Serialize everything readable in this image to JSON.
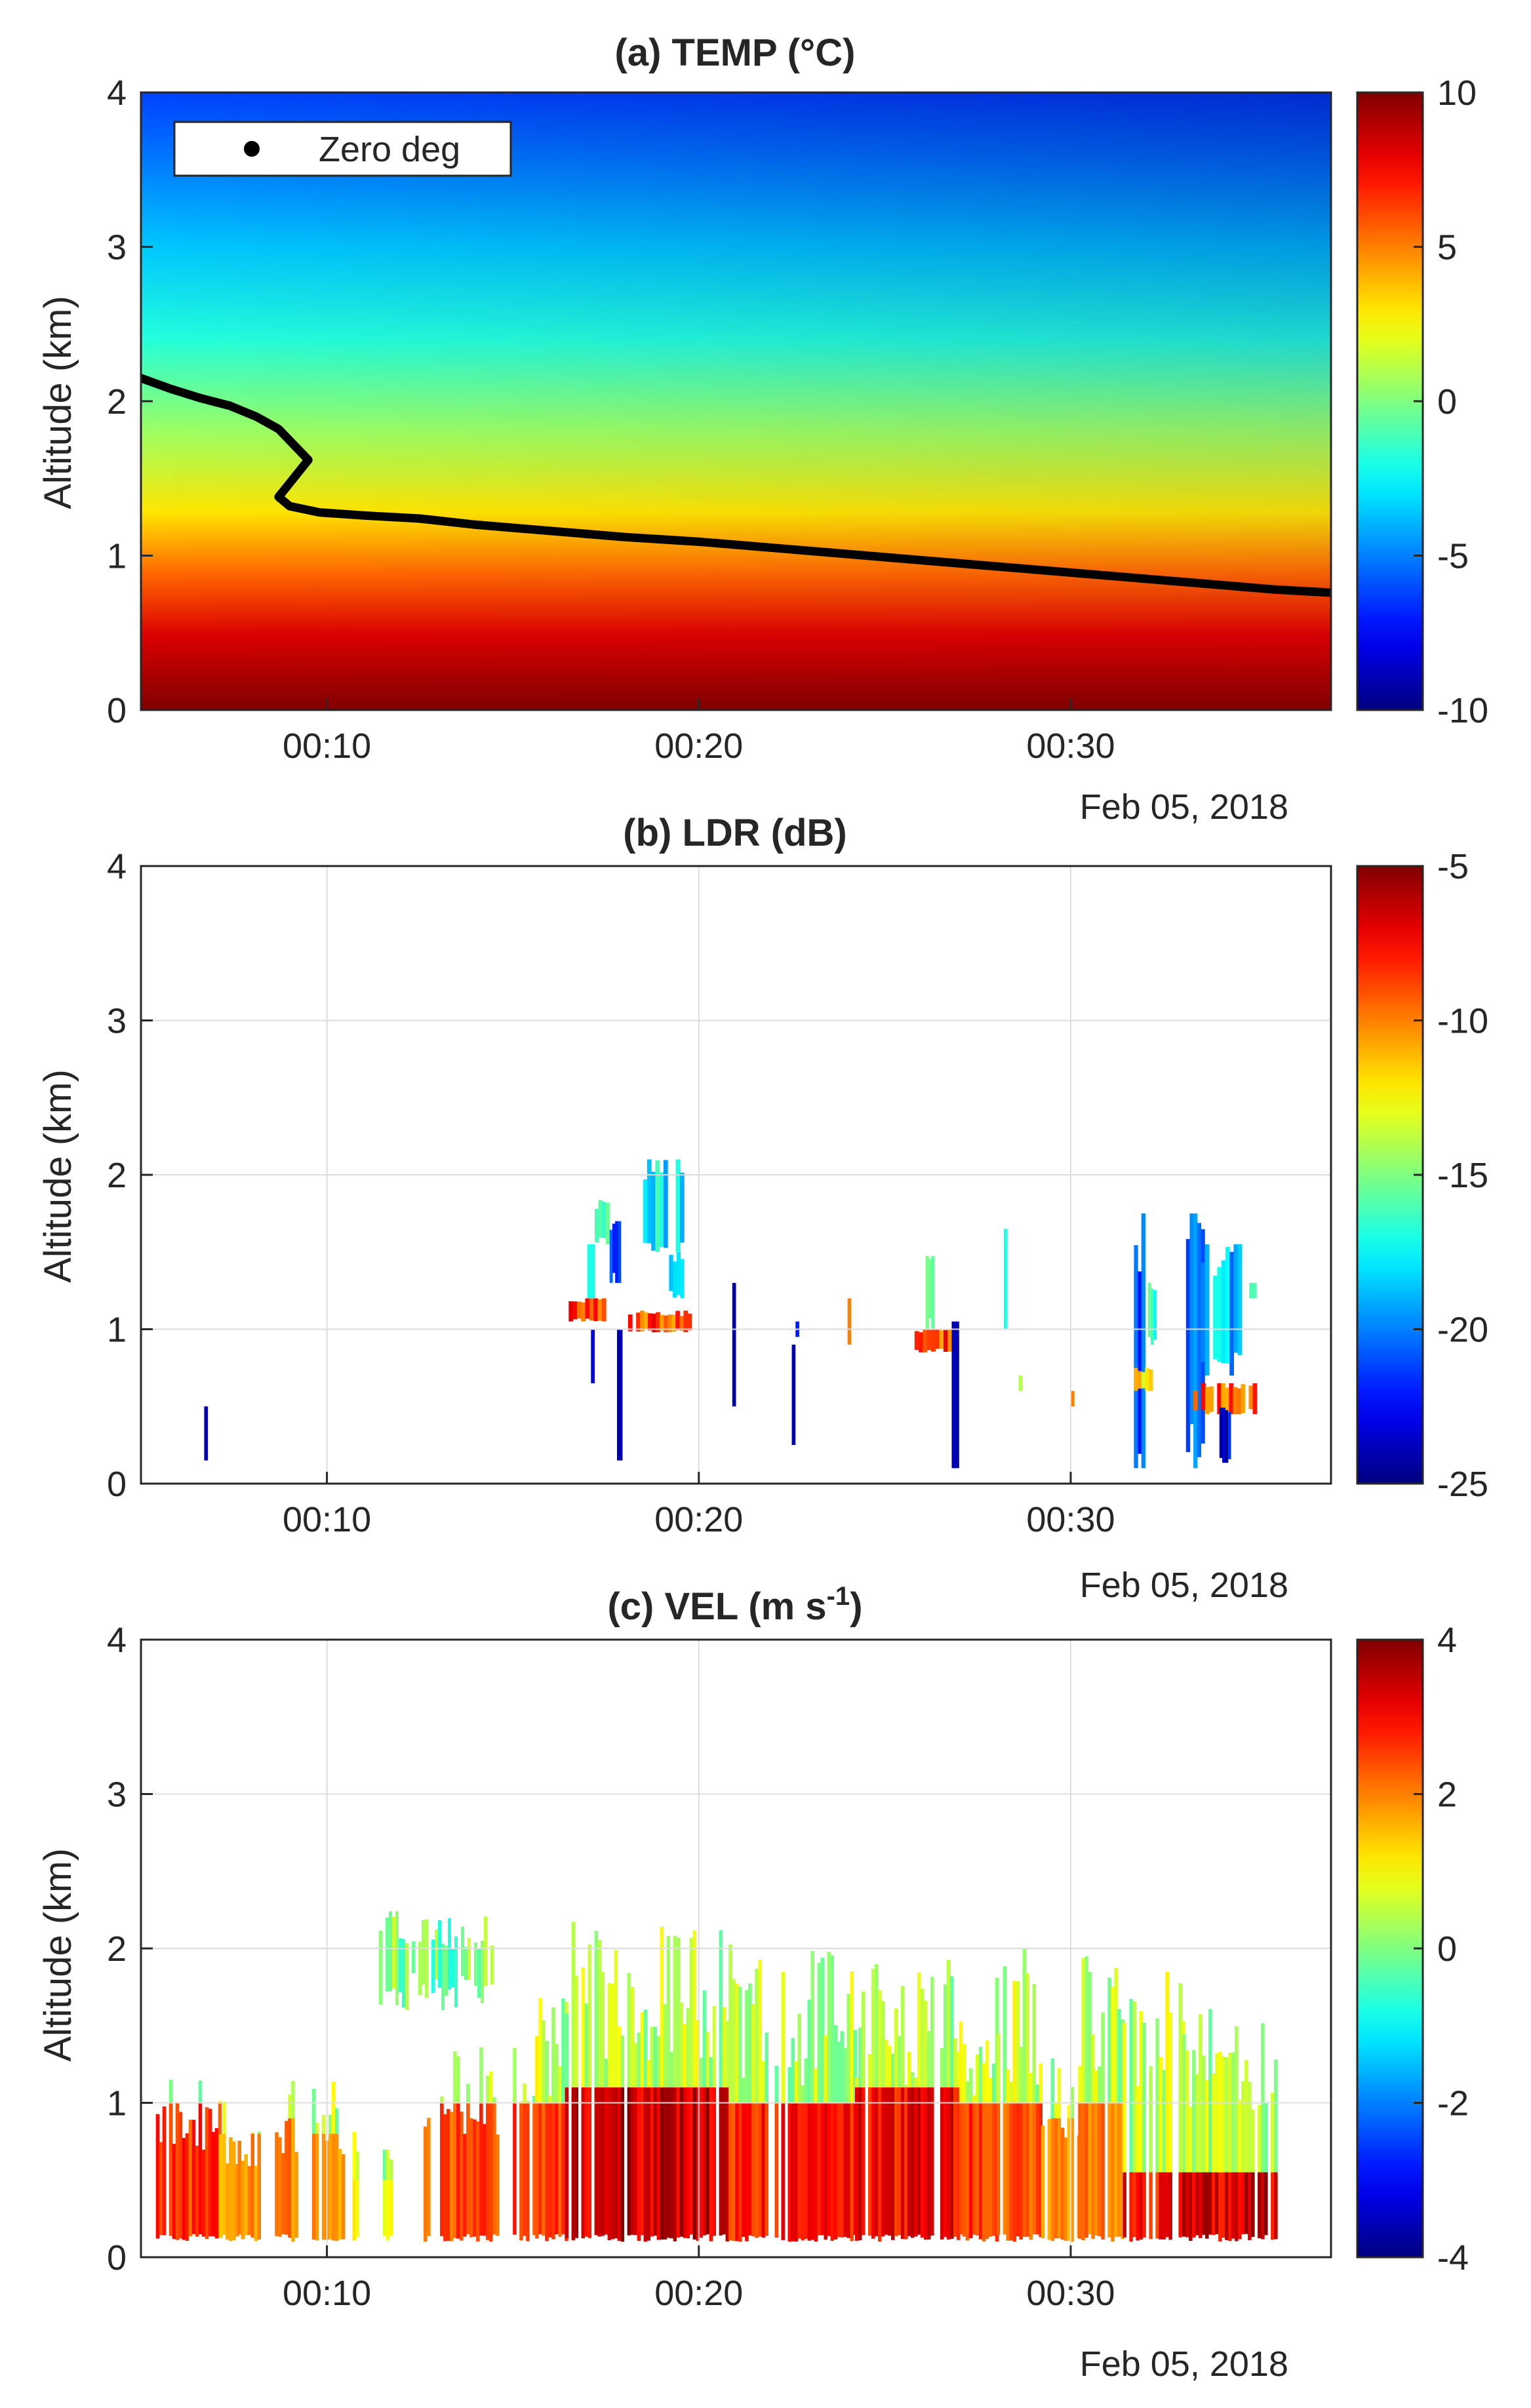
{
  "figure": {
    "date_label": "Feb 05, 2018",
    "ylabel": "Altitude (km)"
  },
  "chart_data": [
    {
      "type": "heatmap",
      "title": "(a) TEMP (°C)",
      "xlabel": "",
      "ylabel": "Altitude (km)",
      "date_label": "Feb 05, 2018",
      "x_range_minutes": [
        5,
        37
      ],
      "xticks_minutes": [
        10,
        20,
        30
      ],
      "xtick_labels": [
        "00:10",
        "00:20",
        "00:30"
      ],
      "ylim": [
        0,
        4
      ],
      "yticks": [
        0,
        1,
        2,
        3,
        4
      ],
      "grid": false,
      "colorbar": {
        "min": -10,
        "max": 10,
        "ticks": [
          10,
          5,
          0,
          -5,
          -10
        ],
        "colormap": "jet"
      },
      "legend": {
        "position": "top-left",
        "entries": [
          "Zero deg"
        ]
      },
      "series": [
        {
          "name": "Zero deg",
          "color": "#000000",
          "x_minutes": [
            5.0,
            5.8,
            6.6,
            7.4,
            8.1,
            8.7,
            9.1,
            9.5,
            9.1,
            8.7,
            9.0,
            9.8,
            11.0,
            12.5,
            14.0,
            16.0,
            18.0,
            20.0,
            22.0,
            24.0,
            26.0,
            28.0,
            30.0,
            32.0,
            34.0,
            35.5,
            37.0
          ],
          "altitude_km": [
            2.15,
            2.08,
            2.02,
            1.97,
            1.9,
            1.82,
            1.72,
            1.62,
            1.5,
            1.38,
            1.32,
            1.28,
            1.26,
            1.24,
            1.2,
            1.16,
            1.12,
            1.09,
            1.05,
            1.01,
            0.97,
            0.93,
            0.89,
            0.85,
            0.81,
            0.78,
            0.76
          ]
        }
      ]
    },
    {
      "type": "heatmap",
      "title": "(b) LDR (dB)",
      "xlabel": "",
      "ylabel": "Altitude (km)",
      "date_label": "Feb 05, 2018",
      "x_range_minutes": [
        5,
        37
      ],
      "xticks_minutes": [
        10,
        20,
        30
      ],
      "xtick_labels": [
        "00:10",
        "00:20",
        "00:30"
      ],
      "ylim": [
        0,
        4
      ],
      "yticks": [
        0,
        1,
        2,
        3,
        4
      ],
      "grid": true,
      "colorbar": {
        "min": -25,
        "max": -5,
        "ticks": [
          -5,
          -10,
          -15,
          -20,
          -25
        ],
        "colormap": "jet"
      },
      "patches": [
        {
          "t0": 6.7,
          "t1": 6.8,
          "z0": 0.15,
          "z1": 0.5,
          "v": -24
        },
        {
          "t0": 16.5,
          "t1": 17.5,
          "z0": 1.05,
          "z1": 1.2,
          "v": -9
        },
        {
          "t0": 17.0,
          "t1": 17.2,
          "z0": 1.2,
          "z1": 1.55,
          "v": -17
        },
        {
          "t0": 17.1,
          "t1": 17.2,
          "z0": 0.65,
          "z1": 1.0,
          "v": -23
        },
        {
          "t0": 17.2,
          "t1": 17.6,
          "z0": 1.55,
          "z1": 1.85,
          "v": -15
        },
        {
          "t0": 17.6,
          "t1": 17.9,
          "z0": 1.3,
          "z1": 1.7,
          "v": -20
        },
        {
          "t0": 17.8,
          "t1": 17.95,
          "z0": 0.15,
          "z1": 1.0,
          "v": -24
        },
        {
          "t0": 18.1,
          "t1": 19.8,
          "z0": 0.98,
          "z1": 1.12,
          "v": -9
        },
        {
          "t0": 18.5,
          "t1": 19.6,
          "z0": 1.5,
          "z1": 2.1,
          "v": -18
        },
        {
          "t0": 19.2,
          "t1": 19.6,
          "z0": 1.2,
          "z1": 1.5,
          "v": -17
        },
        {
          "t0": 20.9,
          "t1": 21.0,
          "z0": 0.5,
          "z1": 1.3,
          "v": -24
        },
        {
          "t0": 22.5,
          "t1": 22.6,
          "z0": 0.25,
          "z1": 0.9,
          "v": -24
        },
        {
          "t0": 22.6,
          "t1": 22.7,
          "z0": 0.95,
          "z1": 1.05,
          "v": -22
        },
        {
          "t0": 24.0,
          "t1": 24.1,
          "z0": 0.9,
          "z1": 1.2,
          "v": -10
        },
        {
          "t0": 25.8,
          "t1": 26.8,
          "z0": 0.85,
          "z1": 1.0,
          "v": -9
        },
        {
          "t0": 26.1,
          "t1": 26.4,
          "z0": 1.0,
          "z1": 1.6,
          "v": -16
        },
        {
          "t0": 26.8,
          "t1": 27.0,
          "z0": 0.1,
          "z1": 1.05,
          "v": -24
        },
        {
          "t0": 28.2,
          "t1": 28.3,
          "z0": 1.0,
          "z1": 1.65,
          "v": -17
        },
        {
          "t0": 28.6,
          "t1": 28.7,
          "z0": 0.6,
          "z1": 0.7,
          "v": -14
        },
        {
          "t0": 30.0,
          "t1": 30.1,
          "z0": 0.5,
          "z1": 0.6,
          "v": -10
        },
        {
          "t0": 31.6,
          "t1": 32.0,
          "z0": 0.1,
          "z1": 1.75,
          "v": -21
        },
        {
          "t0": 31.7,
          "t1": 32.2,
          "z0": 0.6,
          "z1": 0.75,
          "v": -12
        },
        {
          "t0": 32.0,
          "t1": 32.3,
          "z0": 0.9,
          "z1": 1.3,
          "v": -16
        },
        {
          "t0": 33.1,
          "t1": 33.6,
          "z0": 0.1,
          "z1": 1.75,
          "v": -21
        },
        {
          "t0": 33.5,
          "t1": 34.6,
          "z0": 0.7,
          "z1": 1.55,
          "v": -19
        },
        {
          "t0": 33.3,
          "t1": 35.0,
          "z0": 0.45,
          "z1": 0.65,
          "v": -9
        },
        {
          "t0": 34.0,
          "t1": 34.3,
          "z0": 0.1,
          "z1": 0.5,
          "v": -23
        },
        {
          "t0": 34.8,
          "t1": 35.0,
          "z0": 1.2,
          "z1": 1.3,
          "v": -16
        }
      ]
    },
    {
      "type": "heatmap",
      "title": "(c) VEL (m s",
      "title_superscript": "-1",
      "title_suffix": ")",
      "xlabel": "",
      "ylabel": "Altitude (km)",
      "date_label": "Feb 05, 2018",
      "x_range_minutes": [
        5,
        37
      ],
      "xticks_minutes": [
        10,
        20,
        30
      ],
      "xtick_labels": [
        "00:10",
        "00:20",
        "00:30"
      ],
      "ylim": [
        0,
        4
      ],
      "yticks": [
        0,
        1,
        2,
        3,
        4
      ],
      "grid": true,
      "colorbar": {
        "min": -4,
        "max": 4,
        "ticks": [
          4,
          2,
          0,
          -2,
          -4
        ],
        "colormap": "jet"
      },
      "columns": [
        {
          "t0": 5.4,
          "t1": 7.1,
          "top": 1.15,
          "low": 2.8,
          "up": 1.0
        },
        {
          "t0": 7.1,
          "t1": 7.6,
          "top": 1.05,
          "low": 1.8,
          "up": 0.8
        },
        {
          "t0": 7.6,
          "t1": 8.2,
          "top": 0.9,
          "low": 2.0,
          "up": 0.8
        },
        {
          "t0": 8.6,
          "t1": 9.2,
          "top": 1.2,
          "low": 2.2,
          "up": 0.9
        },
        {
          "t0": 9.6,
          "t1": 10.4,
          "top": 1.2,
          "low": 2.0,
          "up": 0.8
        },
        {
          "t0": 10.6,
          "t1": 10.8,
          "top": 0.9,
          "low": 1.2,
          "up": 0.5
        },
        {
          "t0": 11.5,
          "t1": 11.8,
          "top": 0.75,
          "low": 1.0,
          "up": 0.5
        },
        {
          "t0": 12.6,
          "t1": 14.6,
          "top": 1.4,
          "low": 2.6,
          "up": 1.0
        },
        {
          "t0": 15.0,
          "t1": 15.6,
          "top": 1.6,
          "low": 3.0,
          "up": 1.0
        },
        {
          "t0": 15.6,
          "t1": 16.4,
          "top": 1.7,
          "low": 2.8,
          "up": 1.0
        },
        {
          "t0": 16.4,
          "t1": 20.8,
          "top": 2.2,
          "low": 3.7,
          "up": 1.1
        },
        {
          "t0": 20.8,
          "t1": 21.6,
          "top": 2.1,
          "low": 2.8,
          "up": 1.0
        },
        {
          "t0": 21.6,
          "t1": 24.2,
          "top": 2.0,
          "low": 3.0,
          "up": 1.0
        },
        {
          "t0": 24.2,
          "t1": 27.0,
          "top": 2.0,
          "low": 3.3,
          "up": 1.1
        },
        {
          "t0": 27.0,
          "t1": 28.0,
          "top": 1.9,
          "low": 2.8,
          "up": 1.0
        },
        {
          "t0": 28.0,
          "t1": 29.2,
          "top": 2.0,
          "low": 2.5,
          "up": 1.0
        },
        {
          "t0": 29.2,
          "t1": 30.2,
          "top": 1.4,
          "low": 2.0,
          "up": 0.9
        },
        {
          "t0": 30.2,
          "t1": 31.4,
          "top": 2.0,
          "low": 2.2,
          "up": 1.0
        },
        {
          "t0": 31.4,
          "t1": 33.0,
          "top": 1.9,
          "low": 3.2,
          "up": 0.55
        },
        {
          "t0": 33.0,
          "t1": 35.5,
          "top": 1.7,
          "low": 3.6,
          "up": 0.55
        }
      ],
      "cirrus": [
        {
          "t0": 11.4,
          "t1": 14.4,
          "z0": 1.6,
          "z1": 2.25
        }
      ]
    }
  ]
}
